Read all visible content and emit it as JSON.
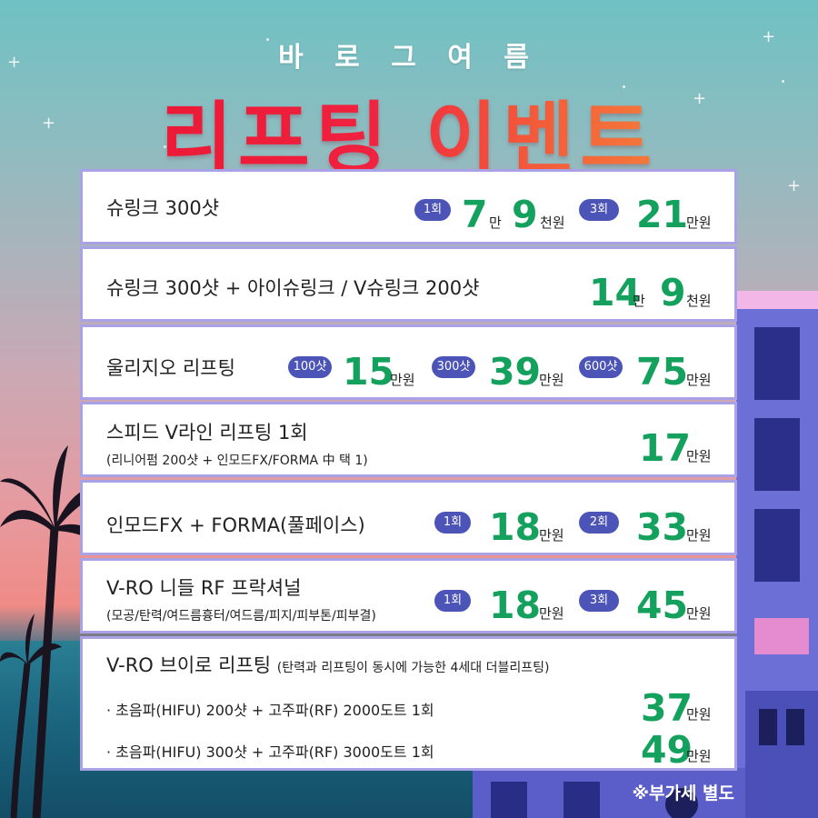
{
  "header": {
    "subtitle": "바 로 그 여 름",
    "title": "리프팅 이벤트"
  },
  "items": [
    {
      "name": "슈링크 300샷",
      "badge1": "1회",
      "price1_a": "7",
      "price1_a_unit": "만",
      "price1_b": "9",
      "price1_b_unit": "천원",
      "badge2": "3회",
      "price2": "21",
      "price2_unit": "만원"
    },
    {
      "name": "슈링크 300샷 + 아이슈링크 / V슈링크 200샷",
      "price_a": "14",
      "price_a_unit": "만",
      "price_b": "9",
      "price_b_unit": "천원"
    },
    {
      "name": "울리지오 리프팅",
      "badge1": "100샷",
      "price1": "15",
      "price1_unit": "만원",
      "badge2": "300샷",
      "price2": "39",
      "price2_unit": "만원",
      "badge3": "600샷",
      "price3": "75",
      "price3_unit": "만원"
    },
    {
      "name": "스피드 V라인 리프팅 1회",
      "sub": "(리니어펌 200샷 + 인모드FX/FORMA 中 택 1)",
      "price": "17",
      "price_unit": "만원"
    },
    {
      "name": "인모드FX + FORMA(풀페이스)",
      "badge1": "1회",
      "price1": "18",
      "price1_unit": "만원",
      "badge2": "2회",
      "price2": "33",
      "price2_unit": "만원"
    },
    {
      "name": "V-RO 니들 RF 프락셔널",
      "sub": "(모공/탄력/여드름흉터/여드름/피지/피부톤/피부결)",
      "badge1": "1회",
      "price1": "18",
      "price1_unit": "만원",
      "badge2": "3회",
      "price2": "45",
      "price2_unit": "만원"
    },
    {
      "name": "V-RO 브이로 리프팅",
      "note": "(탄력과 리프팅이 동시에 가능한 4세대 더블리프팅)",
      "line1": "· 초음파(HIFU) 200샷 + 고주파(RF) 2000도트 1회",
      "price1": "37",
      "price1_unit": "만원",
      "line2": "· 초음파(HIFU) 300샷 + 고주파(RF) 3000도트 1회",
      "price2": "49",
      "price2_unit": "만원"
    }
  ],
  "footer": {
    "vat_note": "※부가세 별도"
  },
  "colors": {
    "price": "#14a05d",
    "badge": "#4c54b7",
    "card_border": "#a9a2e6",
    "title_start": "#e8132f",
    "title_end": "#f6a23b"
  },
  "icons": [
    "sparkle-star-icon",
    "palm-tree-icon",
    "building-illustration"
  ]
}
